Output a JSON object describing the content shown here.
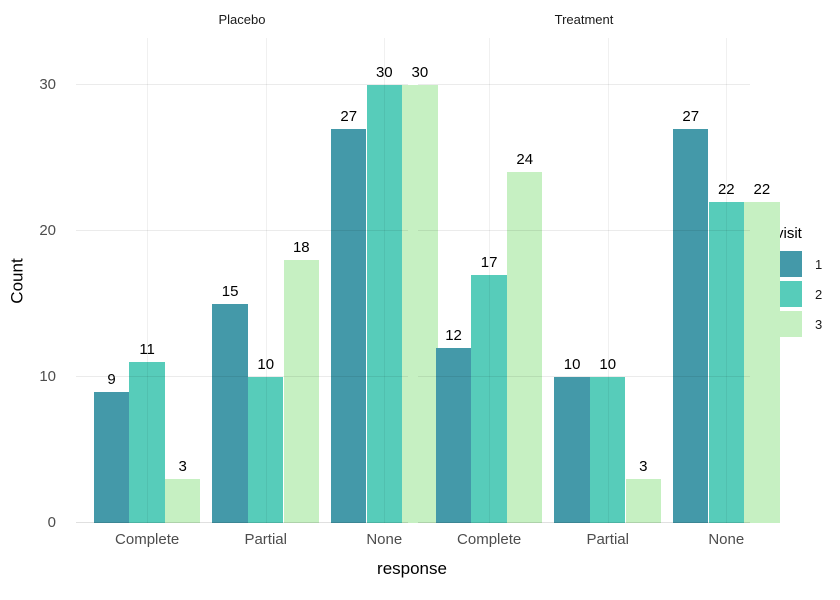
{
  "chart_data": {
    "type": "bar",
    "title": "",
    "xlabel": "response",
    "ylabel": "Count",
    "legend_title": "visit",
    "legend_position": "right",
    "grid": true,
    "y_ticks": [
      0,
      10,
      20,
      30
    ],
    "ylim": [
      0,
      33.2
    ],
    "categories": [
      "Complete",
      "Partial",
      "None"
    ],
    "series_names": [
      "1",
      "2",
      "3"
    ],
    "series_colors": [
      "#4499a9",
      "#57ccba",
      "#c6f0c2"
    ],
    "bar_value_labels": true,
    "facets": [
      {
        "title": "Placebo",
        "series": [
          {
            "name": "1",
            "values": [
              9,
              15,
              27
            ]
          },
          {
            "name": "2",
            "values": [
              11,
              10,
              30
            ]
          },
          {
            "name": "3",
            "values": [
              3,
              18,
              30
            ]
          }
        ]
      },
      {
        "title": "Treatment",
        "series": [
          {
            "name": "1",
            "values": [
              12,
              10,
              27
            ]
          },
          {
            "name": "2",
            "values": [
              17,
              10,
              22
            ]
          },
          {
            "name": "3",
            "values": [
              24,
              3,
              22
            ]
          }
        ]
      }
    ]
  }
}
